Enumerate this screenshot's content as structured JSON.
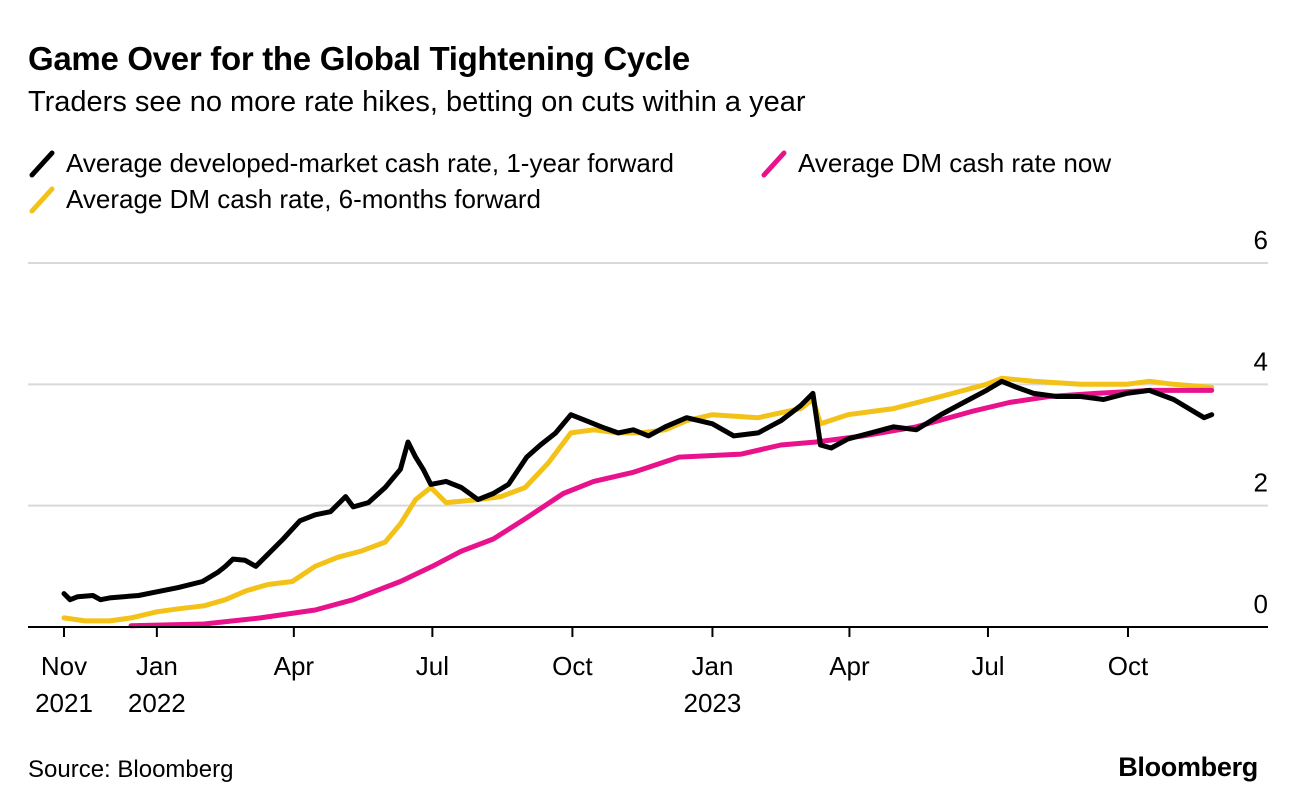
{
  "title": "Game Over for the Global Tightening Cycle",
  "subtitle": "Traders see no more rate hikes, betting on cuts within a year",
  "source": "Source: Bloomberg",
  "brand": "Bloomberg",
  "colors": {
    "black": "#000000",
    "yellow": "#f3c218",
    "magenta": "#e8128c",
    "grid": "#d9d9d9",
    "axis": "#000000"
  },
  "legend": [
    {
      "label": "Average developed-market cash rate, 1-year forward",
      "color": "#000000"
    },
    {
      "label": "Average DM cash rate now",
      "color": "#e8128c"
    },
    {
      "label": "Average DM cash rate, 6-months forward",
      "color": "#f3c218"
    }
  ],
  "chart_data": {
    "type": "line",
    "title": "Game Over for the Global Tightening Cycle",
    "subtitle": "Traders see no more rate hikes, betting on cuts within a year",
    "xlabel": "",
    "ylabel": "",
    "ylim": [
      0,
      6
    ],
    "xlim": [
      "2021-11-01",
      "2023-12-31"
    ],
    "y_ticks": [
      0,
      2,
      4,
      6
    ],
    "grid": true,
    "y_axis_side": "right",
    "legend_position": "top-left",
    "x_ticks": [
      {
        "date": "2021-11-01",
        "line1": "Nov",
        "line2": "2021"
      },
      {
        "date": "2022-01-01",
        "line1": "Jan",
        "line2": "2022"
      },
      {
        "date": "2022-04-01",
        "line1": "Apr",
        "line2": ""
      },
      {
        "date": "2022-07-01",
        "line1": "Jul",
        "line2": ""
      },
      {
        "date": "2022-10-01",
        "line1": "Oct",
        "line2": ""
      },
      {
        "date": "2023-01-01",
        "line1": "Jan",
        "line2": "2023"
      },
      {
        "date": "2023-04-01",
        "line1": "Apr",
        "line2": ""
      },
      {
        "date": "2023-07-01",
        "line1": "Jul",
        "line2": ""
      },
      {
        "date": "2023-10-01",
        "line1": "Oct",
        "line2": ""
      }
    ],
    "series": [
      {
        "name": "Average developed-market cash rate, 1-year forward",
        "color": "#000000",
        "points": [
          [
            "2021-11-01",
            0.55
          ],
          [
            "2021-11-05",
            0.45
          ],
          [
            "2021-11-10",
            0.5
          ],
          [
            "2021-11-20",
            0.52
          ],
          [
            "2021-11-25",
            0.45
          ],
          [
            "2021-12-01",
            0.48
          ],
          [
            "2021-12-10",
            0.5
          ],
          [
            "2021-12-20",
            0.52
          ],
          [
            "2022-01-01",
            0.58
          ],
          [
            "2022-01-15",
            0.65
          ],
          [
            "2022-01-31",
            0.75
          ],
          [
            "2022-02-10",
            0.9
          ],
          [
            "2022-02-15",
            1.0
          ],
          [
            "2022-02-20",
            1.12
          ],
          [
            "2022-02-28",
            1.1
          ],
          [
            "2022-03-07",
            1.0
          ],
          [
            "2022-03-15",
            1.2
          ],
          [
            "2022-03-25",
            1.45
          ],
          [
            "2022-04-05",
            1.75
          ],
          [
            "2022-04-15",
            1.85
          ],
          [
            "2022-04-25",
            1.9
          ],
          [
            "2022-05-05",
            2.15
          ],
          [
            "2022-05-10",
            1.98
          ],
          [
            "2022-05-20",
            2.05
          ],
          [
            "2022-05-31",
            2.3
          ],
          [
            "2022-06-10",
            2.6
          ],
          [
            "2022-06-15",
            3.05
          ],
          [
            "2022-06-20",
            2.8
          ],
          [
            "2022-06-25",
            2.6
          ],
          [
            "2022-06-30",
            2.35
          ],
          [
            "2022-07-10",
            2.4
          ],
          [
            "2022-07-20",
            2.3
          ],
          [
            "2022-07-31",
            2.1
          ],
          [
            "2022-08-10",
            2.2
          ],
          [
            "2022-08-20",
            2.35
          ],
          [
            "2022-09-01",
            2.8
          ],
          [
            "2022-09-10",
            3.0
          ],
          [
            "2022-09-20",
            3.2
          ],
          [
            "2022-09-30",
            3.5
          ],
          [
            "2022-10-10",
            3.4
          ],
          [
            "2022-10-20",
            3.3
          ],
          [
            "2022-10-31",
            3.2
          ],
          [
            "2022-11-10",
            3.25
          ],
          [
            "2022-11-20",
            3.15
          ],
          [
            "2022-12-01",
            3.3
          ],
          [
            "2022-12-15",
            3.45
          ],
          [
            "2023-01-01",
            3.35
          ],
          [
            "2023-01-15",
            3.15
          ],
          [
            "2023-01-31",
            3.2
          ],
          [
            "2023-02-15",
            3.4
          ],
          [
            "2023-02-28",
            3.65
          ],
          [
            "2023-03-08",
            3.85
          ],
          [
            "2023-03-13",
            3.0
          ],
          [
            "2023-03-20",
            2.95
          ],
          [
            "2023-03-31",
            3.1
          ],
          [
            "2023-04-15",
            3.2
          ],
          [
            "2023-04-30",
            3.3
          ],
          [
            "2023-05-15",
            3.25
          ],
          [
            "2023-05-31",
            3.5
          ],
          [
            "2023-06-15",
            3.7
          ],
          [
            "2023-06-30",
            3.9
          ],
          [
            "2023-07-10",
            4.05
          ],
          [
            "2023-07-20",
            3.95
          ],
          [
            "2023-07-31",
            3.85
          ],
          [
            "2023-08-15",
            3.8
          ],
          [
            "2023-08-31",
            3.8
          ],
          [
            "2023-09-15",
            3.75
          ],
          [
            "2023-09-30",
            3.85
          ],
          [
            "2023-10-15",
            3.9
          ],
          [
            "2023-10-31",
            3.75
          ],
          [
            "2023-11-10",
            3.6
          ],
          [
            "2023-11-20",
            3.45
          ],
          [
            "2023-11-25",
            3.5
          ]
        ]
      },
      {
        "name": "Average DM cash rate now",
        "color": "#e8128c",
        "points": [
          [
            "2021-12-15",
            0.02
          ],
          [
            "2022-02-01",
            0.05
          ],
          [
            "2022-03-10",
            0.15
          ],
          [
            "2022-04-15",
            0.28
          ],
          [
            "2022-05-10",
            0.45
          ],
          [
            "2022-06-10",
            0.75
          ],
          [
            "2022-07-01",
            1.0
          ],
          [
            "2022-07-20",
            1.25
          ],
          [
            "2022-08-10",
            1.45
          ],
          [
            "2022-09-01",
            1.8
          ],
          [
            "2022-09-25",
            2.2
          ],
          [
            "2022-10-15",
            2.4
          ],
          [
            "2022-11-10",
            2.55
          ],
          [
            "2022-12-10",
            2.8
          ],
          [
            "2023-01-20",
            2.85
          ],
          [
            "2023-02-15",
            3.0
          ],
          [
            "2023-03-10",
            3.05
          ],
          [
            "2023-04-10",
            3.15
          ],
          [
            "2023-05-15",
            3.3
          ],
          [
            "2023-06-20",
            3.55
          ],
          [
            "2023-07-15",
            3.7
          ],
          [
            "2023-08-10",
            3.8
          ],
          [
            "2023-09-10",
            3.85
          ],
          [
            "2023-10-15",
            3.9
          ],
          [
            "2023-11-25",
            3.9
          ]
        ]
      },
      {
        "name": "Average DM cash rate, 6-months forward",
        "color": "#f3c218",
        "points": [
          [
            "2021-11-01",
            0.15
          ],
          [
            "2021-11-15",
            0.1
          ],
          [
            "2021-12-01",
            0.1
          ],
          [
            "2021-12-15",
            0.15
          ],
          [
            "2022-01-01",
            0.25
          ],
          [
            "2022-01-15",
            0.3
          ],
          [
            "2022-02-01",
            0.35
          ],
          [
            "2022-02-15",
            0.45
          ],
          [
            "2022-03-01",
            0.6
          ],
          [
            "2022-03-15",
            0.7
          ],
          [
            "2022-03-31",
            0.75
          ],
          [
            "2022-04-15",
            1.0
          ],
          [
            "2022-04-30",
            1.15
          ],
          [
            "2022-05-15",
            1.25
          ],
          [
            "2022-05-31",
            1.4
          ],
          [
            "2022-06-10",
            1.7
          ],
          [
            "2022-06-20",
            2.1
          ],
          [
            "2022-06-30",
            2.3
          ],
          [
            "2022-07-10",
            2.05
          ],
          [
            "2022-07-31",
            2.1
          ],
          [
            "2022-08-15",
            2.15
          ],
          [
            "2022-08-31",
            2.3
          ],
          [
            "2022-09-15",
            2.7
          ],
          [
            "2022-09-30",
            3.2
          ],
          [
            "2022-10-15",
            3.25
          ],
          [
            "2022-10-31",
            3.2
          ],
          [
            "2022-11-15",
            3.2
          ],
          [
            "2022-12-01",
            3.25
          ],
          [
            "2022-12-15",
            3.4
          ],
          [
            "2023-01-01",
            3.5
          ],
          [
            "2023-01-31",
            3.45
          ],
          [
            "2023-02-28",
            3.6
          ],
          [
            "2023-03-08",
            3.75
          ],
          [
            "2023-03-13",
            3.35
          ],
          [
            "2023-03-31",
            3.5
          ],
          [
            "2023-04-30",
            3.6
          ],
          [
            "2023-05-31",
            3.8
          ],
          [
            "2023-06-30",
            4.0
          ],
          [
            "2023-07-10",
            4.1
          ],
          [
            "2023-07-31",
            4.05
          ],
          [
            "2023-08-31",
            4.0
          ],
          [
            "2023-09-30",
            4.0
          ],
          [
            "2023-10-15",
            4.05
          ],
          [
            "2023-10-31",
            4.0
          ],
          [
            "2023-11-25",
            3.95
          ]
        ]
      }
    ]
  }
}
